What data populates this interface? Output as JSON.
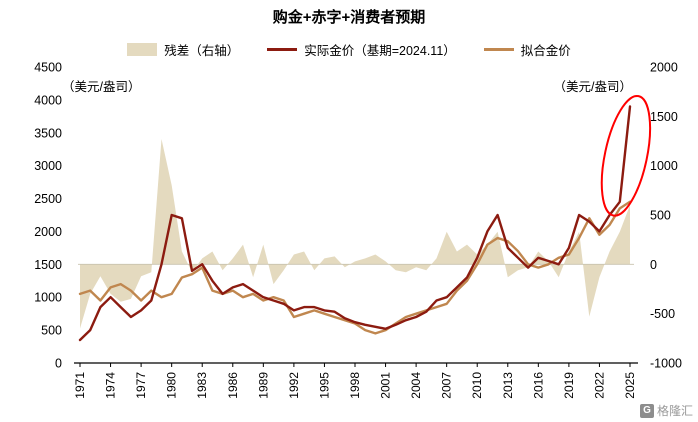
{
  "title": "购金+赤字+消费者预期",
  "watermark": "格隆汇",
  "axis": {
    "left_unit": "（美元/盎司）",
    "right_unit": "（美元/盎司）",
    "left_ticks": [
      4500,
      4000,
      3500,
      3000,
      2500,
      2000,
      1500,
      1000,
      500,
      0
    ],
    "right_ticks": [
      2000,
      1500,
      1000,
      500,
      0,
      -500,
      -1000
    ]
  },
  "legend": [
    {
      "label": "残差（右轴）",
      "type": "area",
      "color": "#E4DABF"
    },
    {
      "label": "实际金价（基期=2024.11）",
      "type": "line",
      "color": "#8C1B10"
    },
    {
      "label": "拟合金价",
      "type": "line",
      "color": "#C0874F"
    }
  ],
  "chart_data": {
    "type": "line",
    "title": "购金+赤字+消费者预期",
    "x": [
      1971,
      1972,
      1973,
      1974,
      1975,
      1976,
      1977,
      1978,
      1979,
      1980,
      1981,
      1982,
      1983,
      1984,
      1985,
      1986,
      1987,
      1988,
      1989,
      1990,
      1991,
      1992,
      1993,
      1994,
      1995,
      1996,
      1997,
      1998,
      1999,
      2000,
      2001,
      2002,
      2003,
      2004,
      2005,
      2006,
      2007,
      2008,
      2009,
      2010,
      2011,
      2012,
      2013,
      2014,
      2015,
      2016,
      2017,
      2018,
      2019,
      2020,
      2021,
      2022,
      2023,
      2024,
      2025
    ],
    "x_tick_labels": [
      1971,
      1974,
      1977,
      1980,
      1983,
      1986,
      1989,
      1992,
      1995,
      1998,
      2001,
      2004,
      2007,
      2010,
      2013,
      2016,
      2019,
      2022,
      2025
    ],
    "left_ylim": [
      0,
      4500
    ],
    "right_ylim": [
      -1000,
      2000
    ],
    "series": [
      {
        "name": "实际金价（基期=2024.11）",
        "axis": "left",
        "style": "line",
        "color": "#8C1B10",
        "values": [
          350,
          500,
          850,
          1000,
          850,
          700,
          800,
          950,
          1500,
          2250,
          2200,
          1400,
          1500,
          1250,
          1050,
          1150,
          1200,
          1100,
          1000,
          950,
          900,
          800,
          850,
          850,
          800,
          780,
          680,
          620,
          580,
          550,
          520,
          580,
          650,
          700,
          780,
          950,
          1000,
          1150,
          1300,
          1600,
          2000,
          2250,
          1750,
          1600,
          1450,
          1600,
          1550,
          1500,
          1750,
          2250,
          2150,
          2000,
          2250,
          2450,
          3900
        ]
      },
      {
        "name": "拟合金价",
        "axis": "left",
        "style": "line",
        "color": "#C0874F",
        "values": [
          1050,
          1100,
          950,
          1150,
          1200,
          1100,
          950,
          1100,
          1000,
          1050,
          1300,
          1350,
          1450,
          1100,
          1050,
          1100,
          1000,
          1050,
          950,
          1000,
          950,
          700,
          750,
          800,
          750,
          700,
          650,
          600,
          500,
          450,
          500,
          600,
          700,
          750,
          800,
          850,
          900,
          1100,
          1250,
          1500,
          1800,
          1900,
          1850,
          1700,
          1500,
          1450,
          1500,
          1600,
          1650,
          1900,
          2200,
          1950,
          2100,
          2350,
          2450
        ]
      },
      {
        "name": "残差（右轴）",
        "axis": "right",
        "style": "area",
        "color": "#E4DABF",
        "values": [
          -650,
          -300,
          -120,
          -300,
          -380,
          -350,
          -120,
          -80,
          1270,
          800,
          130,
          -80,
          60,
          130,
          -60,
          60,
          200,
          -130,
          200,
          -200,
          -60,
          100,
          130,
          -60,
          60,
          80,
          -30,
          30,
          60,
          100,
          30,
          -60,
          -80,
          -30,
          -60,
          60,
          330,
          130,
          200,
          100,
          200,
          330,
          -130,
          -60,
          -30,
          130,
          30,
          -130,
          130,
          330,
          -530,
          -130,
          130,
          330,
          600
        ]
      }
    ],
    "annotation": {
      "shape": "ellipse",
      "color": "#FF0000",
      "x_year": 2024.6,
      "y_left_value": 3150
    }
  }
}
